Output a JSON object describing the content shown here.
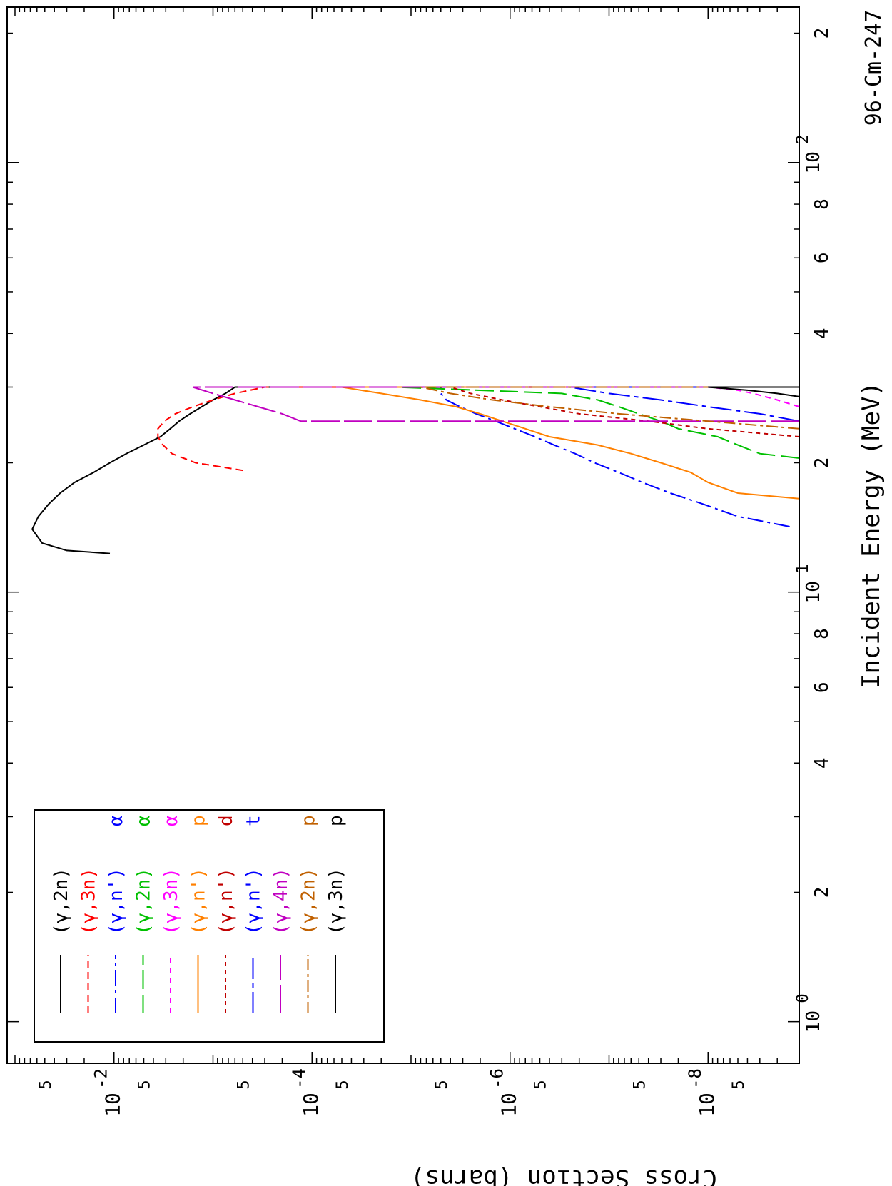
{
  "chart_data": {
    "type": "line",
    "orientation": "rotated-90",
    "title": "96-Cm-247",
    "xlabel": "Incident Energy (MeV)",
    "ylabel": "Cross Section (barns)",
    "x_scale": "log",
    "y_scale": "log",
    "xlim": [
      0.8,
      230
    ],
    "ylim": [
      1.2e-09,
      0.12
    ],
    "x_ticks": [
      {
        "v": 1,
        "text": "10",
        "exp": "0"
      },
      {
        "v": 2,
        "text": "2"
      },
      {
        "v": 4,
        "text": "4"
      },
      {
        "v": 6,
        "text": "6"
      },
      {
        "v": 8,
        "text": "8"
      },
      {
        "v": 10,
        "text": "10",
        "exp": "1"
      },
      {
        "v": 20,
        "text": "2"
      },
      {
        "v": 40,
        "text": "4"
      },
      {
        "v": 60,
        "text": "6"
      },
      {
        "v": 80,
        "text": "8"
      },
      {
        "v": 100,
        "text": "10",
        "exp": "2"
      },
      {
        "v": 200,
        "text": "2"
      }
    ],
    "y_ticks": [
      {
        "v": 5e-09,
        "text": "5"
      },
      {
        "v": 1e-08,
        "text": "10",
        "exp": "-8"
      },
      {
        "v": 5e-08,
        "text": "5"
      },
      {
        "v": 5e-07,
        "text": "5"
      },
      {
        "v": 1e-06,
        "text": "10",
        "exp": "-6"
      },
      {
        "v": 5e-06,
        "text": "5"
      },
      {
        "v": 5e-05,
        "text": "5"
      },
      {
        "v": 0.0001,
        "text": "10",
        "exp": "-4"
      },
      {
        "v": 0.0005,
        "text": "5"
      },
      {
        "v": 0.005,
        "text": "5"
      },
      {
        "v": 0.01,
        "text": "10",
        "exp": "-2"
      },
      {
        "v": 0.05,
        "text": "5"
      }
    ],
    "legend": {
      "placement": "bottom-left",
      "entries": [
        {
          "reaction": "(γ,2n)",
          "product": "",
          "color": "#000000",
          "dash": "solid"
        },
        {
          "reaction": "(γ,3n)",
          "product": "",
          "color": "#ff0000",
          "dash": "dashed"
        },
        {
          "reaction": "(γ,n')",
          "product": "α",
          "color": "#0000ff",
          "dash": "dashdot"
        },
        {
          "reaction": "(γ,2n)",
          "product": "α",
          "color": "#00c000",
          "dash": "longdash"
        },
        {
          "reaction": "(γ,3n)",
          "product": "α",
          "color": "#ff00ff",
          "dash": "shortdash"
        },
        {
          "reaction": "(γ,n')",
          "product": "p",
          "color": "#ff8000",
          "dash": "solid"
        },
        {
          "reaction": "(γ,n')",
          "product": "d",
          "color": "#c00000",
          "dash": "dotted-dash"
        },
        {
          "reaction": "(γ,n')",
          "product": "t",
          "color": "#0000ff",
          "dash": "longdashdot"
        },
        {
          "reaction": "(γ,4n)",
          "product": "",
          "color": "#c000c0",
          "dash": "verylong"
        },
        {
          "reaction": "(γ,2n)",
          "product": "p",
          "color": "#c06000",
          "dash": "dashdot2"
        },
        {
          "reaction": "(γ,3n)",
          "product": "p",
          "color": "#000000",
          "dash": "solid"
        }
      ]
    },
    "series": [
      {
        "name": "(γ,2n)",
        "color": "#000000",
        "dash": "solid",
        "x": [
          12.3,
          12.5,
          13.0,
          14.0,
          15.0,
          16.0,
          17.0,
          18.0,
          19.0,
          20.0,
          21.0,
          22.0,
          23.0,
          24.0,
          25.0,
          26.0,
          27.0,
          28.0,
          29.0,
          30.0
        ],
        "y": [
          0.011,
          0.03,
          0.053,
          0.067,
          0.058,
          0.046,
          0.035,
          0.025,
          0.016,
          0.011,
          0.0075,
          0.005,
          0.0034,
          0.0027,
          0.0022,
          0.0017,
          0.0013,
          0.001,
          0.00075,
          0.0006
        ]
      },
      {
        "name": "(γ,3n)",
        "color": "#ff0000",
        "dash": "dashed",
        "x": [
          19.2,
          20.0,
          21.0,
          22.0,
          23.0,
          24.0,
          25.0,
          26.0,
          27.0,
          28.0,
          29.0,
          30.0
        ],
        "y": [
          0.0005,
          0.0015,
          0.0026,
          0.0032,
          0.0036,
          0.0036,
          0.0031,
          0.0024,
          0.0016,
          0.001,
          0.0006,
          0.0003
        ]
      },
      {
        "name": "(γ,n') α",
        "color": "#0000ff",
        "dash": "dashdot",
        "x": [
          14.2,
          15.0,
          16.0,
          17.0,
          18.0,
          19.0,
          20.0,
          21.0,
          22.0,
          23.0,
          24.0,
          25.0,
          26.0,
          27.0,
          28.0,
          29.0,
          30.0
        ],
        "y": [
          1.5e-09,
          5e-09,
          1.1e-08,
          2.4e-08,
          4.6e-08,
          8e-08,
          1.4e-07,
          2.2e-07,
          3.6e-07,
          5.6e-07,
          9e-07,
          1.4e-06,
          2.2e-06,
          3.2e-06,
          4.4e-06,
          5e-06,
          5e-06
        ]
      },
      {
        "name": "(γ,2n) α",
        "color": "#00c000",
        "dash": "longdash",
        "x": [
          20.5,
          21.0,
          22.0,
          23.0,
          24.0,
          25.0,
          26.0,
          27.0,
          28.0,
          29.0,
          30.0
        ],
        "y": [
          1.2e-09,
          3e-09,
          5e-09,
          8e-09,
          2e-08,
          3e-08,
          5e-08,
          8e-08,
          1.3e-07,
          3e-07,
          1.4e-05
        ]
      },
      {
        "name": "(γ,3n) α",
        "color": "#ff00ff",
        "dash": "shortdash",
        "x": [
          27.0,
          28.0,
          29.0,
          29.5,
          30.0
        ],
        "y": [
          1.2e-09,
          2e-09,
          3.5e-09,
          5e-09,
          1e-08
        ]
      },
      {
        "name": "(γ,n') p",
        "color": "#ff8000",
        "dash": "solid",
        "x": [
          16.5,
          17.0,
          18.0,
          19.0,
          20.0,
          21.0,
          22.0,
          23.0,
          24.0,
          25.0,
          26.0,
          27.0,
          28.0,
          29.0,
          30.0
        ],
        "y": [
          1.2e-09,
          5e-09,
          1e-08,
          1.5e-08,
          3e-08,
          6e-08,
          1.3e-07,
          4e-07,
          7e-07,
          1.2e-06,
          2e-06,
          3.5e-06,
          8e-06,
          2e-05,
          5e-05
        ]
      },
      {
        "name": "(γ,n') d",
        "color": "#c00000",
        "dash": "dotted-dash",
        "x": [
          23.0,
          24.0,
          25.0,
          26.0,
          27.0,
          28.0,
          29.0,
          30.0
        ],
        "y": [
          1.2e-09,
          1e-08,
          4e-08,
          2e-07,
          5e-07,
          1.2e-06,
          2.5e-06,
          4e-06
        ]
      },
      {
        "name": "(γ,n') t",
        "color": "#0000ff",
        "dash": "longdashdot",
        "x": [
          25.0,
          26.0,
          27.0,
          28.0,
          29.0,
          30.0
        ],
        "y": [
          1.2e-09,
          3e-09,
          1e-08,
          3e-08,
          1e-07,
          2.5e-07
        ]
      },
      {
        "name": "(γ,4n)",
        "color": "#c000c0",
        "dash": "verylong",
        "x": [
          25.0,
          25.0,
          26.0,
          27.0,
          28.0,
          29.0,
          30.0
        ],
        "y": [
          1.2e-09,
          0.00013,
          0.0002,
          0.00035,
          0.0006,
          0.001,
          0.0016
        ]
      },
      {
        "name": "(γ,2n) p",
        "color": "#c06000",
        "dash": "dashdot2",
        "x": [
          24.0,
          25.0,
          26.0,
          27.0,
          28.0,
          29.0,
          30.0
        ],
        "y": [
          1.2e-09,
          1e-08,
          8e-08,
          4e-07,
          1.5e-06,
          4e-06,
          8e-06
        ]
      },
      {
        "name": "(γ,3n) p",
        "color": "#000000",
        "dash": "solid",
        "x": [
          28.5,
          29.0,
          29.5,
          30.0
        ],
        "y": [
          1.2e-09,
          2e-09,
          4e-09,
          1e-08
        ]
      }
    ],
    "cutoff_x": 30.0,
    "grid": false
  }
}
